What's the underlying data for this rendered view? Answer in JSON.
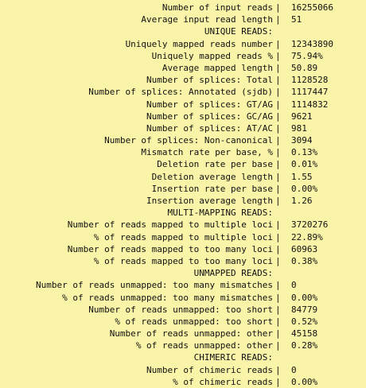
{
  "separator": "|",
  "rows": [
    {
      "label": "Number of input reads",
      "value": "16255066"
    },
    {
      "label": "Average input read length",
      "value": "51"
    },
    {
      "header": "UNIQUE READS:"
    },
    {
      "label": "Uniquely mapped reads number",
      "value": "12343890"
    },
    {
      "label": "Uniquely mapped reads %",
      "value": "75.94%"
    },
    {
      "label": "Average mapped length",
      "value": "50.89"
    },
    {
      "label": "Number of splices: Total",
      "value": "1128528"
    },
    {
      "label": "Number of splices: Annotated (sjdb)",
      "value": "1117447"
    },
    {
      "label": "Number of splices: GT/AG",
      "value": "1114832"
    },
    {
      "label": "Number of splices: GC/AG",
      "value": "9621"
    },
    {
      "label": "Number of splices: AT/AC",
      "value": "981"
    },
    {
      "label": "Number of splices: Non-canonical",
      "value": "3094"
    },
    {
      "label": "Mismatch rate per base, %",
      "value": "0.13%"
    },
    {
      "label": "Deletion rate per base",
      "value": "0.01%"
    },
    {
      "label": "Deletion average length",
      "value": "1.55"
    },
    {
      "label": "Insertion rate per base",
      "value": "0.00%"
    },
    {
      "label": "Insertion average length",
      "value": "1.26"
    },
    {
      "header": "MULTI-MAPPING READS:"
    },
    {
      "label": "Number of reads mapped to multiple loci",
      "value": "3720276"
    },
    {
      "label": "% of reads mapped to multiple loci",
      "value": "22.89%"
    },
    {
      "label": "Number of reads mapped to too many loci",
      "value": "60963"
    },
    {
      "label": "% of reads mapped to too many loci",
      "value": "0.38%"
    },
    {
      "header": "UNMAPPED READS:"
    },
    {
      "label": "Number of reads unmapped: too many mismatches",
      "value": "0"
    },
    {
      "label": "% of reads unmapped: too many mismatches",
      "value": "0.00%"
    },
    {
      "label": "Number of reads unmapped: too short",
      "value": "84779"
    },
    {
      "label": "% of reads unmapped: too short",
      "value": "0.52%"
    },
    {
      "label": "Number of reads unmapped: other",
      "value": "45158"
    },
    {
      "label": "% of reads unmapped: other",
      "value": "0.28%"
    },
    {
      "header": "CHIMERIC READS:"
    },
    {
      "label": "Number of chimeric reads",
      "value": "0"
    },
    {
      "label": "% of chimeric reads",
      "value": "0.00%"
    }
  ]
}
